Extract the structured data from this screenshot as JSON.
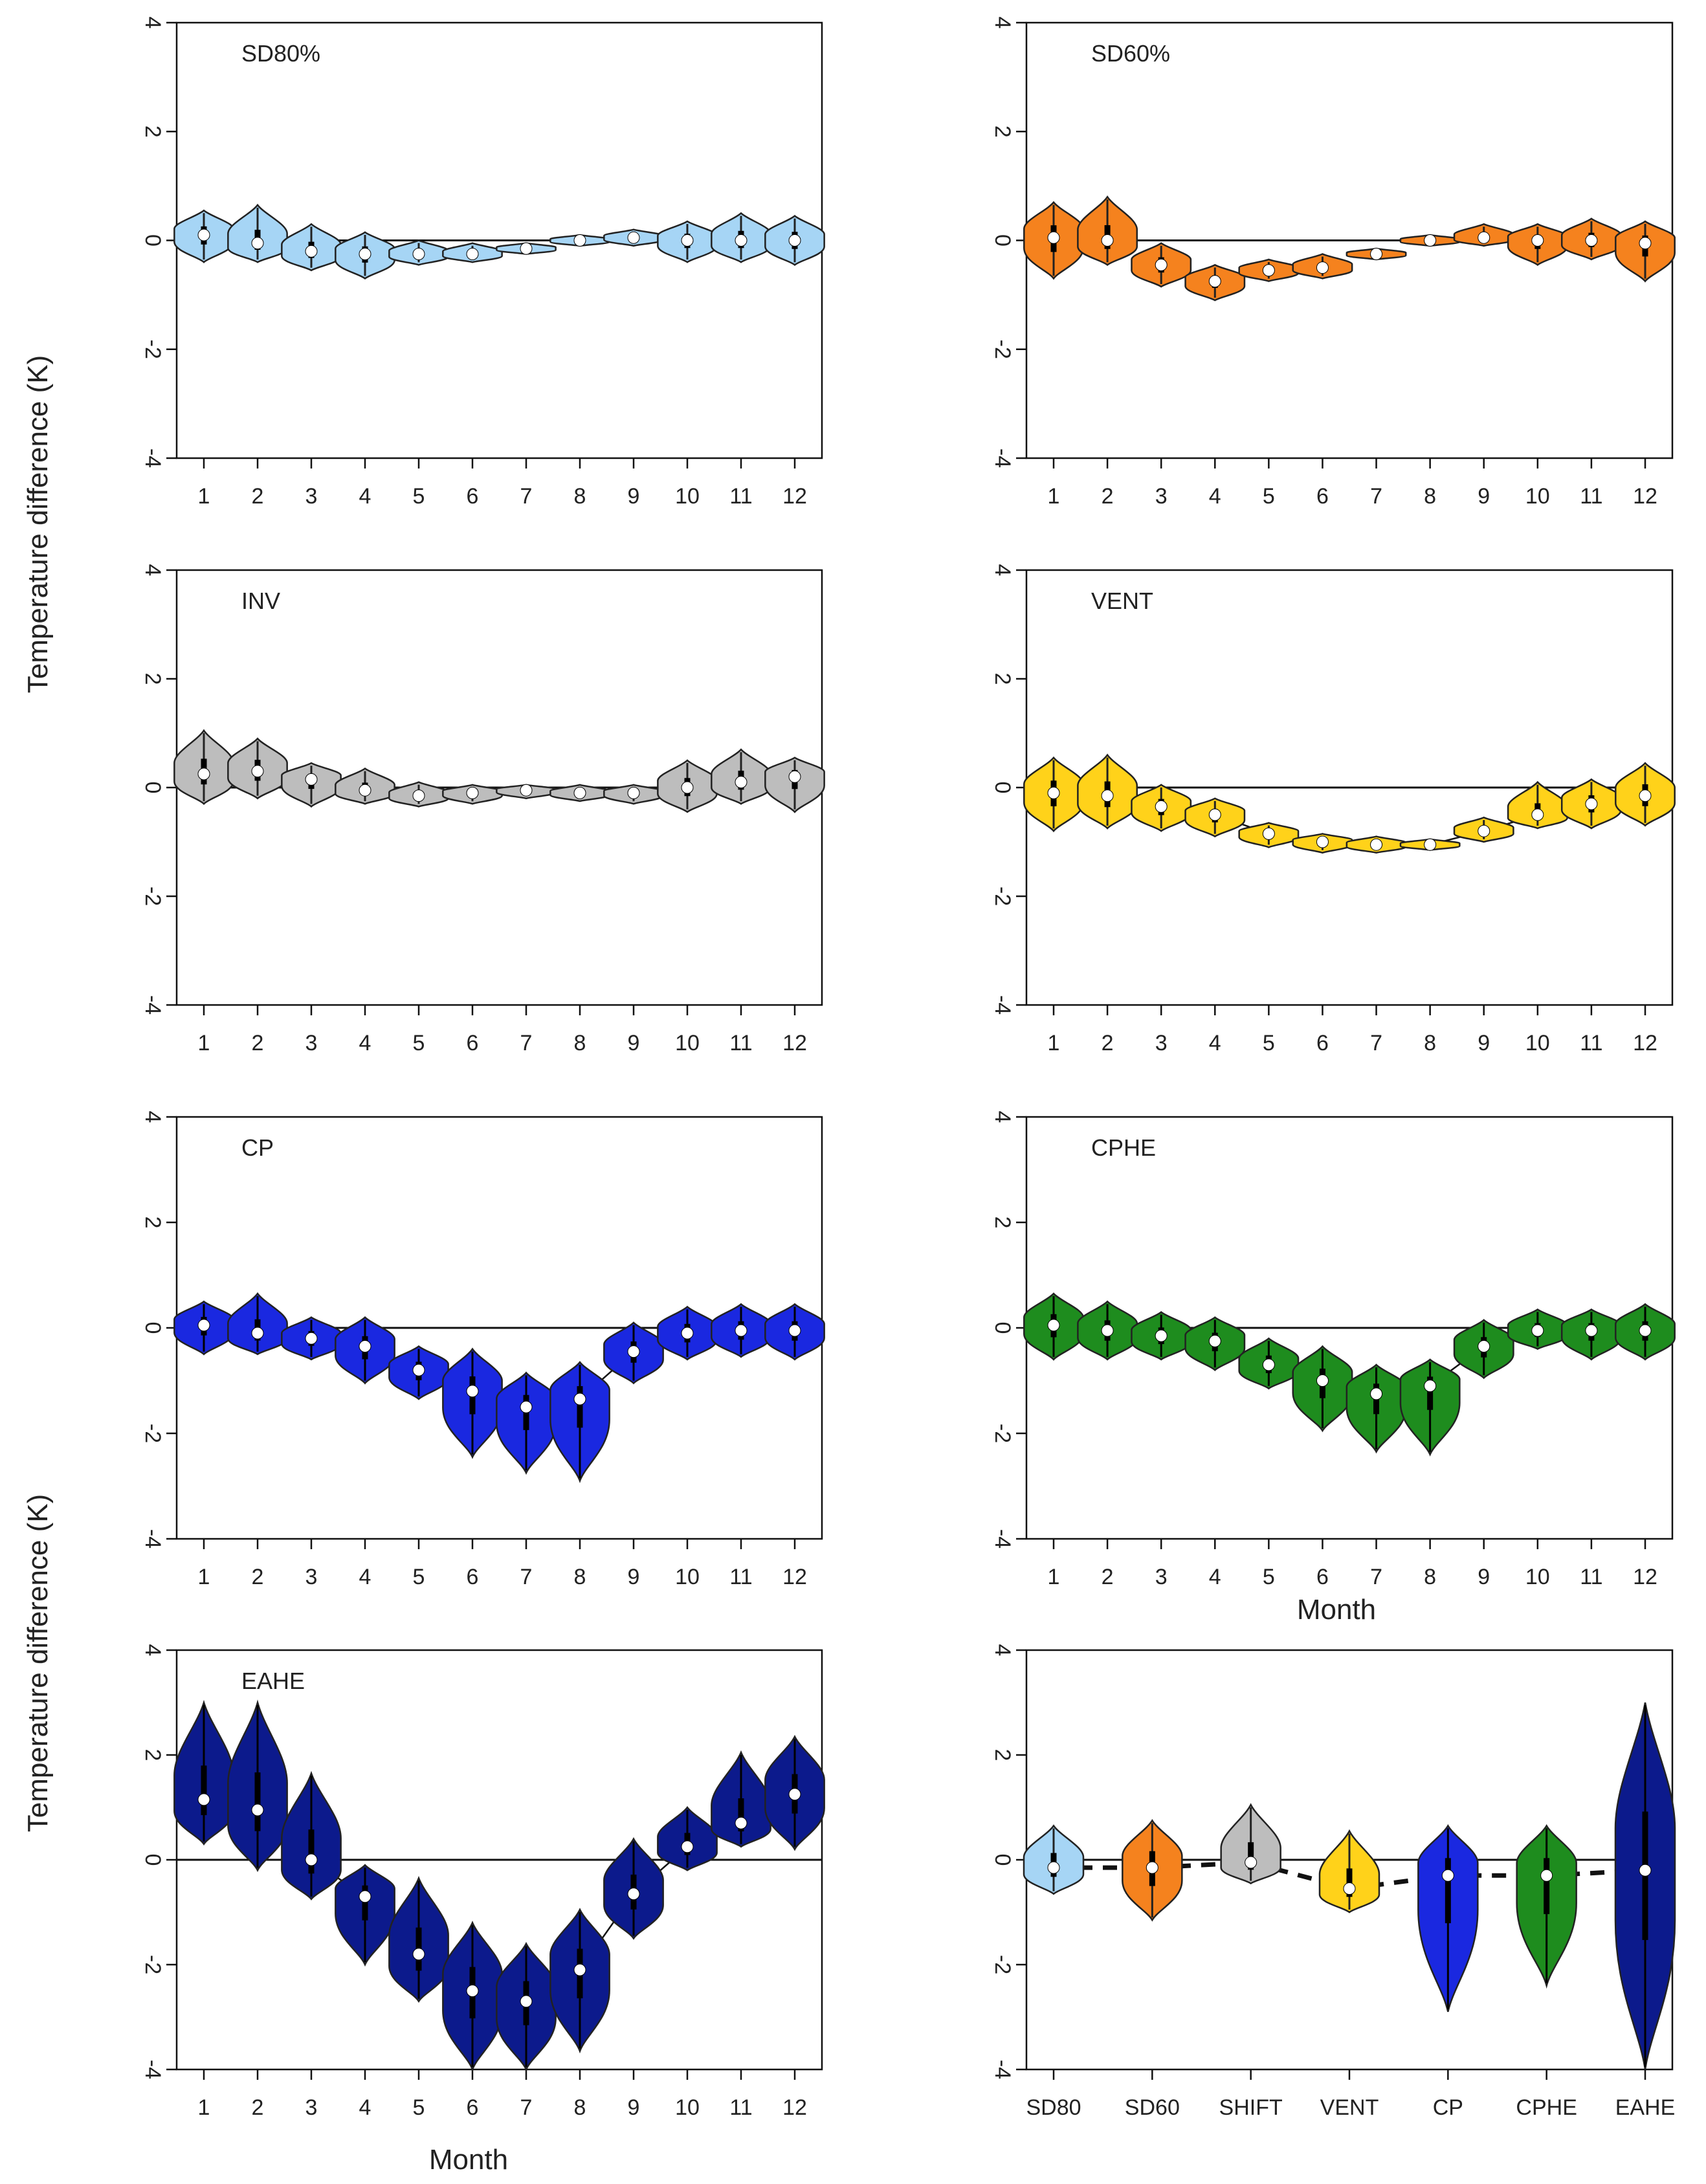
{
  "figure": {
    "ylabel_top": "Temperature difference (K)",
    "ylabel_bottom": "Temperature difference (K)",
    "xlabel_middle_right": "Month",
    "xlabel_bottom_left": "Month"
  },
  "chart_data": [
    {
      "type": "violin",
      "title": "SD80%",
      "color": "#a6d5f5",
      "x": [
        1,
        2,
        3,
        4,
        5,
        6,
        7,
        8,
        9,
        10,
        11,
        12
      ],
      "x_tick_labels": [
        "1",
        "2",
        "3",
        "4",
        "5",
        "6",
        "7",
        "8",
        "9",
        "10",
        "11",
        "12"
      ],
      "median": [
        0.1,
        -0.05,
        -0.2,
        -0.25,
        -0.25,
        -0.25,
        -0.15,
        0.0,
        0.05,
        0.0,
        0.0,
        0.0
      ],
      "low": [
        -0.4,
        -0.4,
        -0.55,
        -0.7,
        -0.45,
        -0.4,
        -0.25,
        -0.1,
        -0.1,
        -0.4,
        -0.4,
        -0.45
      ],
      "high": [
        0.55,
        0.65,
        0.3,
        0.15,
        0.0,
        -0.05,
        -0.05,
        0.1,
        0.2,
        0.35,
        0.5,
        0.45
      ],
      "connect_medians": false,
      "ylim": [
        -4,
        4
      ],
      "y_ticks": [
        -4,
        -2,
        0,
        2,
        4
      ],
      "zero_line": true
    },
    {
      "type": "violin",
      "title": "SD60%",
      "color": "#f5821e",
      "x": [
        1,
        2,
        3,
        4,
        5,
        6,
        7,
        8,
        9,
        10,
        11,
        12
      ],
      "x_tick_labels": [
        "1",
        "2",
        "3",
        "4",
        "5",
        "6",
        "7",
        "8",
        "9",
        "10",
        "11",
        "12"
      ],
      "median": [
        0.05,
        0.0,
        -0.45,
        -0.75,
        -0.55,
        -0.5,
        -0.25,
        0.0,
        0.05,
        0.0,
        0.0,
        -0.05
      ],
      "low": [
        -0.7,
        -0.45,
        -0.85,
        -1.1,
        -0.75,
        -0.7,
        -0.35,
        -0.1,
        -0.1,
        -0.45,
        -0.35,
        -0.75
      ],
      "high": [
        0.7,
        0.8,
        -0.05,
        -0.45,
        -0.35,
        -0.25,
        -0.15,
        0.1,
        0.3,
        0.3,
        0.4,
        0.35
      ],
      "connect_medians": false,
      "ylim": [
        -4,
        4
      ],
      "y_ticks": [
        -4,
        -2,
        0,
        2,
        4
      ],
      "zero_line": true
    },
    {
      "type": "violin",
      "title": "INV",
      "color": "#bdbdbd",
      "x": [
        1,
        2,
        3,
        4,
        5,
        6,
        7,
        8,
        9,
        10,
        11,
        12
      ],
      "x_tick_labels": [
        "1",
        "2",
        "3",
        "4",
        "5",
        "6",
        "7",
        "8",
        "9",
        "10",
        "11",
        "12"
      ],
      "median": [
        0.25,
        0.3,
        0.15,
        -0.05,
        -0.15,
        -0.1,
        -0.05,
        -0.1,
        -0.1,
        0.0,
        0.1,
        0.2
      ],
      "low": [
        -0.3,
        -0.2,
        -0.35,
        -0.3,
        -0.35,
        -0.3,
        -0.2,
        -0.25,
        -0.3,
        -0.45,
        -0.3,
        -0.45
      ],
      "high": [
        1.05,
        0.9,
        0.45,
        0.35,
        0.1,
        0.05,
        0.05,
        0.05,
        0.05,
        0.5,
        0.7,
        0.55
      ],
      "connect_medians": false,
      "ylim": [
        -4,
        4
      ],
      "y_ticks": [
        -4,
        -2,
        0,
        2,
        4
      ],
      "zero_line": true
    },
    {
      "type": "violin",
      "title": "VENT",
      "color": "#ffd21a",
      "x": [
        1,
        2,
        3,
        4,
        5,
        6,
        7,
        8,
        9,
        10,
        11,
        12
      ],
      "x_tick_labels": [
        "1",
        "2",
        "3",
        "4",
        "5",
        "6",
        "7",
        "8",
        "9",
        "10",
        "11",
        "12"
      ],
      "median": [
        -0.1,
        -0.15,
        -0.35,
        -0.5,
        -0.85,
        -1.0,
        -1.05,
        -1.05,
        -0.8,
        -0.5,
        -0.3,
        -0.15
      ],
      "low": [
        -0.8,
        -0.75,
        -0.8,
        -0.9,
        -1.1,
        -1.2,
        -1.2,
        -1.15,
        -1.0,
        -0.75,
        -0.75,
        -0.7
      ],
      "high": [
        0.55,
        0.6,
        0.05,
        -0.2,
        -0.65,
        -0.85,
        -0.9,
        -0.95,
        -0.55,
        0.1,
        0.15,
        0.45
      ],
      "connect_medians": true,
      "ylim": [
        -4,
        4
      ],
      "y_ticks": [
        -4,
        -2,
        0,
        2,
        4
      ],
      "zero_line": true
    },
    {
      "type": "violin",
      "title": "CP",
      "color": "#1a28e0",
      "x": [
        1,
        2,
        3,
        4,
        5,
        6,
        7,
        8,
        9,
        10,
        11,
        12
      ],
      "x_tick_labels": [
        "1",
        "2",
        "3",
        "4",
        "5",
        "6",
        "7",
        "8",
        "9",
        "10",
        "11",
        "12"
      ],
      "median": [
        0.05,
        -0.1,
        -0.2,
        -0.35,
        -0.8,
        -1.2,
        -1.5,
        -1.35,
        -0.45,
        -0.1,
        -0.05,
        -0.05
      ],
      "low": [
        -0.5,
        -0.5,
        -0.6,
        -1.05,
        -1.35,
        -2.45,
        -2.75,
        -2.9,
        -1.05,
        -0.6,
        -0.55,
        -0.6
      ],
      "high": [
        0.5,
        0.65,
        0.2,
        0.2,
        -0.35,
        -0.4,
        -0.85,
        -0.65,
        0.1,
        0.4,
        0.45,
        0.45
      ],
      "connect_medians": true,
      "ylim": [
        -4,
        4
      ],
      "y_ticks": [
        -4,
        -2,
        0,
        2,
        4
      ],
      "zero_line": true
    },
    {
      "type": "violin",
      "title": "CPHE",
      "color": "#1e8c1e",
      "x": [
        1,
        2,
        3,
        4,
        5,
        6,
        7,
        8,
        9,
        10,
        11,
        12
      ],
      "x_tick_labels": [
        "1",
        "2",
        "3",
        "4",
        "5",
        "6",
        "7",
        "8",
        "9",
        "10",
        "11",
        "12"
      ],
      "median": [
        0.05,
        -0.05,
        -0.15,
        -0.25,
        -0.7,
        -1.0,
        -1.25,
        -1.1,
        -0.35,
        -0.05,
        -0.05,
        -0.05
      ],
      "low": [
        -0.6,
        -0.6,
        -0.6,
        -0.8,
        -1.15,
        -1.95,
        -2.35,
        -2.4,
        -0.95,
        -0.4,
        -0.6,
        -0.6
      ],
      "high": [
        0.65,
        0.5,
        0.3,
        0.2,
        -0.2,
        -0.35,
        -0.7,
        -0.6,
        0.15,
        0.35,
        0.35,
        0.45
      ],
      "connect_medians": true,
      "ylim": [
        -4,
        4
      ],
      "y_ticks": [
        -4,
        -2,
        0,
        2,
        4
      ],
      "zero_line": true
    },
    {
      "type": "violin",
      "title": "EAHE",
      "color": "#0c1a8c",
      "x": [
        1,
        2,
        3,
        4,
        5,
        6,
        7,
        8,
        9,
        10,
        11,
        12
      ],
      "x_tick_labels": [
        "1",
        "2",
        "3",
        "4",
        "5",
        "6",
        "7",
        "8",
        "9",
        "10",
        "11",
        "12"
      ],
      "median": [
        1.15,
        0.95,
        0.0,
        -0.7,
        -1.8,
        -2.5,
        -2.7,
        -2.1,
        -0.65,
        0.25,
        0.7,
        1.25
      ],
      "low": [
        0.3,
        -0.2,
        -0.75,
        -2.0,
        -2.7,
        -4.0,
        -4.0,
        -3.65,
        -1.5,
        -0.2,
        0.25,
        0.2
      ],
      "high": [
        3.0,
        3.0,
        1.65,
        -0.1,
        -0.35,
        -1.2,
        -1.6,
        -0.95,
        0.4,
        1.0,
        2.05,
        2.35
      ],
      "connect_medians": true,
      "ylim": [
        -4,
        4
      ],
      "y_ticks": [
        -4,
        -2,
        0,
        2,
        4
      ],
      "zero_line": true
    },
    {
      "type": "violin",
      "title": "",
      "colors": [
        "#a6d5f5",
        "#f5821e",
        "#bdbdbd",
        "#ffd21a",
        "#1a28e0",
        "#1e8c1e",
        "#0c1a8c"
      ],
      "x": [
        1,
        2,
        3,
        4,
        5,
        6,
        7
      ],
      "x_tick_labels": [
        "SD80",
        "SD60",
        "SHIFT",
        "VENT",
        "CP",
        "CPHE",
        "EAHE"
      ],
      "median": [
        -0.15,
        -0.15,
        -0.05,
        -0.55,
        -0.3,
        -0.3,
        -0.2
      ],
      "low": [
        -0.65,
        -1.15,
        -0.45,
        -1.0,
        -2.9,
        -2.4,
        -4.0
      ],
      "high": [
        0.65,
        0.75,
        1.05,
        0.55,
        0.65,
        0.65,
        3.0
      ],
      "connect_medians": true,
      "dashed_connector": true,
      "ylim": [
        -4,
        4
      ],
      "y_ticks": [
        -4,
        -2,
        0,
        2,
        4
      ],
      "zero_line": true
    }
  ]
}
